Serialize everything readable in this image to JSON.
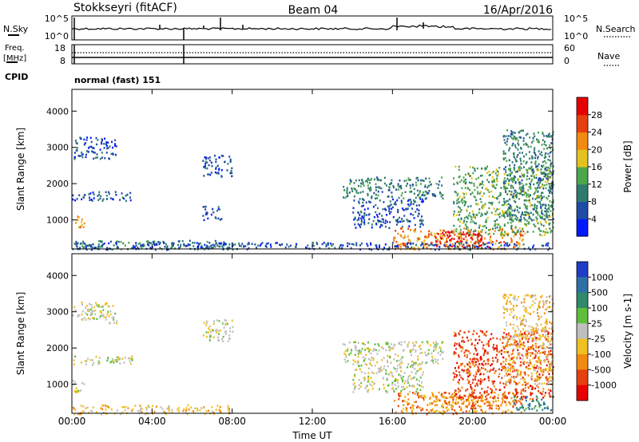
{
  "header": {
    "station": "Stokkseyri (fitACF)",
    "beam": "Beam 04",
    "date": "16/Apr/2016"
  },
  "top_panel": {
    "left_label": "N.Sky",
    "left_ticks": [
      "10^5",
      "10^0"
    ],
    "right_ticks": [
      "10^5",
      "10^0"
    ],
    "right_label": "N.Search"
  },
  "freq_panel": {
    "left_label_1": "Freq.",
    "left_label_2": "[MHz]",
    "left_ticks": [
      "18",
      "8"
    ],
    "right_ticks": [
      "60",
      "0"
    ],
    "right_label": "Nave",
    "cpid_label": "CPID",
    "mode": "normal (fast) 151"
  },
  "chart_data": [
    {
      "type": "heatmap",
      "name": "power",
      "ylabel": "Slant Range [km]",
      "yticks": [
        "1000",
        "2000",
        "3000",
        "4000"
      ],
      "ylim": [
        200,
        4600
      ],
      "xlim": [
        0,
        24
      ],
      "colorbar_label": "Power [dB]",
      "colorbar_ticks": [
        "4",
        "8",
        "12",
        "16",
        "20",
        "24",
        "28"
      ],
      "colors": [
        "#0019ff",
        "#1f4aa6",
        "#2e7a6e",
        "#4ca64c",
        "#e3c21e",
        "#f08a10",
        "#e64010",
        "#e60000"
      ],
      "regions": [
        {
          "t": [
            0.0,
            2.2
          ],
          "r": [
            2700,
            3300
          ],
          "level": 1
        },
        {
          "t": [
            0.0,
            3.0
          ],
          "r": [
            1550,
            1800
          ],
          "level": 1
        },
        {
          "t": [
            0.0,
            0.6
          ],
          "r": [
            800,
            1150
          ],
          "level": 5
        },
        {
          "t": [
            0.0,
            8.0
          ],
          "r": [
            200,
            450
          ],
          "level": 2
        },
        {
          "t": [
            6.5,
            8.0
          ],
          "r": [
            2200,
            2800
          ],
          "level": 1
        },
        {
          "t": [
            6.5,
            7.5
          ],
          "r": [
            1000,
            1400
          ],
          "level": 1
        },
        {
          "t": [
            13.5,
            18.5
          ],
          "r": [
            1600,
            2200
          ],
          "level": 2
        },
        {
          "t": [
            14.0,
            17.5
          ],
          "r": [
            800,
            1600
          ],
          "level": 1
        },
        {
          "t": [
            16.0,
            22.5
          ],
          "r": [
            200,
            800
          ],
          "level": 5
        },
        {
          "t": [
            18.0,
            20.5
          ],
          "r": [
            250,
            700
          ],
          "level": 7
        },
        {
          "t": [
            19.0,
            24.0
          ],
          "r": [
            600,
            2500
          ],
          "level": 3
        },
        {
          "t": [
            21.5,
            24.0
          ],
          "r": [
            1000,
            3500
          ],
          "level": 2
        },
        {
          "t": [
            0.0,
            24.0
          ],
          "r": [
            200,
            400
          ],
          "level": 1
        }
      ]
    },
    {
      "type": "heatmap",
      "name": "velocity",
      "ylabel": "Slant Range [km]",
      "yticks": [
        "1000",
        "2000",
        "3000",
        "4000"
      ],
      "ylim": [
        200,
        4600
      ],
      "xlim": [
        0,
        24
      ],
      "xlabel": "Time UT",
      "xticks": [
        "00:00",
        "04:00",
        "08:00",
        "12:00",
        "16:00",
        "20:00",
        "00:00"
      ],
      "colorbar_label": "Velocity [m s-1]",
      "colorbar_ticks": [
        "1000",
        "500",
        "100",
        "25",
        "-25",
        "-100",
        "-500",
        "-1000"
      ],
      "colors": [
        "#1e3cc8",
        "#2f6fa8",
        "#2f8a6a",
        "#5fbf3a",
        "#bfbfbf",
        "#f0c020",
        "#f08a10",
        "#e64010",
        "#e60000"
      ],
      "regions": [
        {
          "t": [
            0.0,
            2.2
          ],
          "r": [
            2700,
            3300
          ],
          "level": 4
        },
        {
          "t": [
            0.0,
            3.0
          ],
          "r": [
            1550,
            1800
          ],
          "level": 4
        },
        {
          "t": [
            0.0,
            0.6
          ],
          "r": [
            800,
            1150
          ],
          "level": 4
        },
        {
          "t": [
            0.0,
            8.0
          ],
          "r": [
            200,
            450
          ],
          "level": 5
        },
        {
          "t": [
            6.5,
            8.0
          ],
          "r": [
            2200,
            2800
          ],
          "level": 4
        },
        {
          "t": [
            13.5,
            18.5
          ],
          "r": [
            1600,
            2200
          ],
          "level": 4
        },
        {
          "t": [
            14.0,
            17.5
          ],
          "r": [
            800,
            1600
          ],
          "level": 4
        },
        {
          "t": [
            16.0,
            22.5
          ],
          "r": [
            200,
            800
          ],
          "level": 6
        },
        {
          "t": [
            18.0,
            20.5
          ],
          "r": [
            250,
            700
          ],
          "level": 6
        },
        {
          "t": [
            19.0,
            24.0
          ],
          "r": [
            600,
            2500
          ],
          "level": 7
        },
        {
          "t": [
            21.5,
            24.0
          ],
          "r": [
            1000,
            3500
          ],
          "level": 5
        },
        {
          "t": [
            22.0,
            24.0
          ],
          "r": [
            300,
            700
          ],
          "level": 2
        }
      ]
    }
  ]
}
